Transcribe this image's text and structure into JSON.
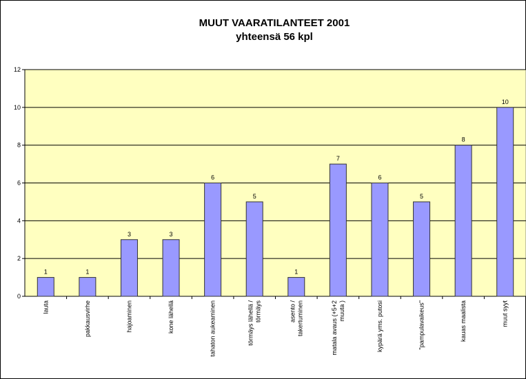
{
  "chart_data": {
    "type": "bar",
    "title": "MUUT VAARATILANTEET 2001",
    "subtitle": "yhteensä 56 kpl",
    "categories": [
      "lauta",
      "pakkausvirhe",
      "hajoaminen",
      "kone lähellä",
      "tahaton aukeaminen",
      "törmäys lähellä / törmäys",
      "asento / takertuminen",
      "matala avaus (+5+2 muuta )",
      "kypärä yms. putosi",
      "\"pampulavaikeus\"",
      "kauas maalista",
      "muut syyt"
    ],
    "values": [
      1,
      1,
      3,
      3,
      6,
      5,
      1,
      7,
      6,
      5,
      8,
      10
    ],
    "color": "#9999ff",
    "ylim": [
      0,
      12
    ],
    "yticks": [
      0,
      2,
      4,
      6,
      8,
      10,
      12
    ],
    "grid": true,
    "data_labels": true
  }
}
